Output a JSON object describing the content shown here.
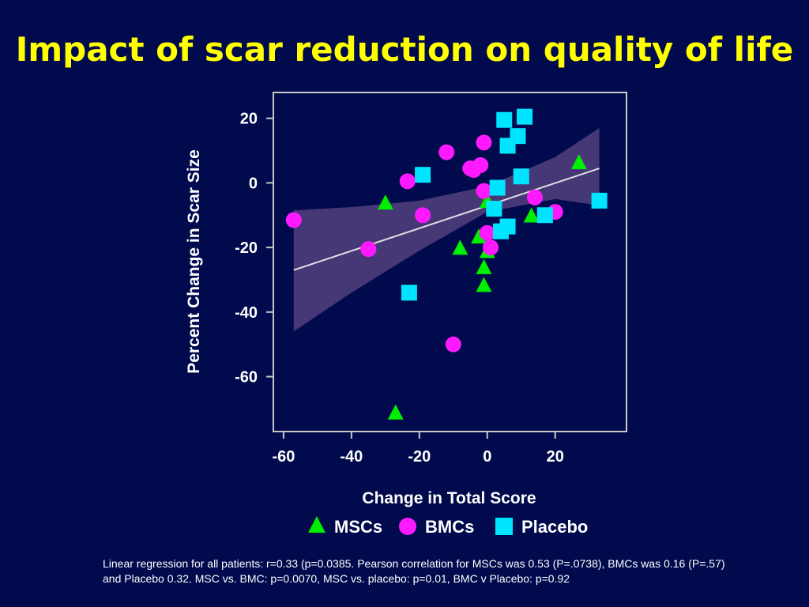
{
  "slide": {
    "title": "Impact of scar reduction on quality of life",
    "caption": "Linear regression for all patients:  r=0.33 (p=0.0385. Pearson correlation for MSCs was 0.53 (P=.0738), BMCs was 0.16 (P=.57) and Placebo 0.32. MSC vs. BMC: p=0.0070, MSC vs. placebo: p=0.01, BMC v Placebo: p=0.92"
  },
  "chart_data": {
    "type": "scatter",
    "xlabel": "Change in Total Score",
    "ylabel": "Percent Change in Scar Size",
    "xlim": [
      -63,
      41
    ],
    "ylim": [
      -77,
      28
    ],
    "xticks": [
      -60,
      -40,
      -20,
      0,
      20
    ],
    "yticks": [
      20,
      0,
      -20,
      -40,
      -60
    ],
    "tick_labels_x": [
      "-60",
      "-40",
      "-20",
      "0",
      "20"
    ],
    "tick_labels_y": [
      "20",
      "0",
      "-20",
      "-40",
      "-60"
    ],
    "grid": false,
    "legend_position": "bottom",
    "regression_line": {
      "x": [
        -57,
        33
      ],
      "y": [
        -27,
        4.5
      ],
      "color": "#e0e0e0"
    },
    "confidence_band": {
      "x": [
        -57,
        -40,
        -20,
        0,
        20,
        33
      ],
      "upper": [
        -8.5,
        -7.5,
        -5.5,
        -1,
        8,
        17
      ],
      "lower": [
        -46,
        -34,
        -21,
        -9,
        -5,
        -7
      ],
      "color": "#4a3a78"
    },
    "series": [
      {
        "name": "MSCs",
        "marker": "triangle",
        "color": "#00ee00",
        "points": [
          [
            -30,
            -6.5
          ],
          [
            -27,
            -71.5
          ],
          [
            -8,
            -20.5
          ],
          [
            -2.5,
            -17
          ],
          [
            -1,
            -26.5
          ],
          [
            0,
            -21.5
          ],
          [
            -1,
            -32
          ],
          [
            0,
            -6
          ],
          [
            13,
            -10.5
          ],
          [
            27,
            6
          ]
        ]
      },
      {
        "name": "BMCs",
        "marker": "circle",
        "color": "#ff19ff",
        "points": [
          [
            -57,
            -11.5
          ],
          [
            -35,
            -20.5
          ],
          [
            -23.5,
            0.5
          ],
          [
            -19,
            -10
          ],
          [
            -12,
            9.5
          ],
          [
            -10,
            -50
          ],
          [
            -5,
            4.5
          ],
          [
            -4,
            4
          ],
          [
            -2,
            5.5
          ],
          [
            -1,
            12.5
          ],
          [
            -1,
            -2.5
          ],
          [
            0,
            -15.5
          ],
          [
            1,
            -20
          ],
          [
            14,
            -4.5
          ],
          [
            20,
            -9
          ]
        ]
      },
      {
        "name": "Placebo",
        "marker": "square",
        "color": "#00e5ff",
        "points": [
          [
            -23,
            -34
          ],
          [
            -19,
            2.5
          ],
          [
            5,
            19.5
          ],
          [
            11,
            20.5
          ],
          [
            6,
            11.5
          ],
          [
            9,
            14.5
          ],
          [
            10,
            2
          ],
          [
            3,
            -1.5
          ],
          [
            2,
            -8
          ],
          [
            4,
            -15
          ],
          [
            6,
            -13.5
          ],
          [
            17,
            -10
          ],
          [
            33,
            -5.5
          ]
        ]
      }
    ]
  }
}
